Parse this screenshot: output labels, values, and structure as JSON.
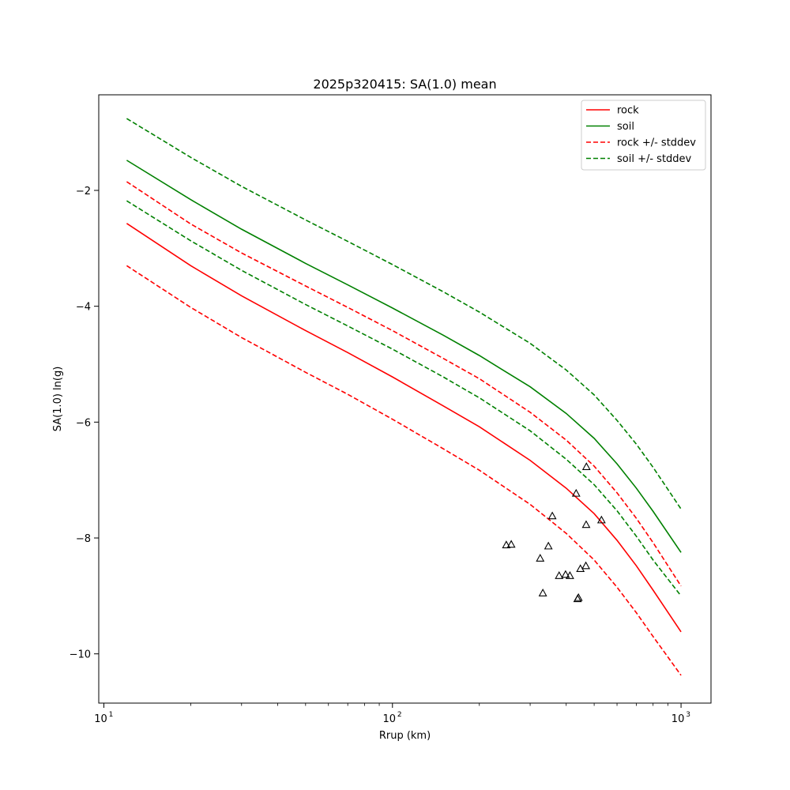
{
  "chart_data": {
    "type": "line",
    "title": "2025p320415: SA(1.0) mean",
    "xlabel": "Rrup (km)",
    "ylabel": "SA(1.0) ln(g)",
    "xscale": "log",
    "xlim": [
      9.6,
      1270
    ],
    "ylim": [
      -10.85,
      -0.35
    ],
    "xticks": [
      {
        "value": 10,
        "base": "10",
        "exp": "1"
      },
      {
        "value": 100,
        "base": "10",
        "exp": "2"
      },
      {
        "value": 1000,
        "base": "10",
        "exp": "3"
      }
    ],
    "yticks": [
      {
        "value": -2,
        "label": "−2"
      },
      {
        "value": -4,
        "label": "−4"
      },
      {
        "value": -6,
        "label": "−6"
      },
      {
        "value": -8,
        "label": "−8"
      },
      {
        "value": -10,
        "label": "−10"
      }
    ],
    "grid": false,
    "legend_position": "top-right",
    "x": [
      12,
      20,
      30,
      50,
      70,
      100,
      150,
      200,
      300,
      400,
      500,
      600,
      700,
      800,
      1000
    ],
    "series": [
      {
        "name": "rock",
        "color": "#ff0000",
        "dash": "solid",
        "values": [
          -2.57,
          -3.3,
          -3.82,
          -4.42,
          -4.8,
          -5.22,
          -5.72,
          -6.08,
          -6.66,
          -7.14,
          -7.58,
          -8.04,
          -8.48,
          -8.9,
          -9.62
        ]
      },
      {
        "name": "soil",
        "color": "#008000",
        "dash": "solid",
        "values": [
          -1.48,
          -2.16,
          -2.67,
          -3.26,
          -3.63,
          -4.03,
          -4.5,
          -4.85,
          -5.39,
          -5.85,
          -6.28,
          -6.72,
          -7.14,
          -7.54,
          -8.25
        ]
      },
      {
        "name": "rock +/- stddev",
        "color": "#ff0000",
        "dash": "dashed",
        "values": [
          -1.85,
          -2.58,
          -3.08,
          -3.65,
          -4.02,
          -4.42,
          -4.9,
          -5.25,
          -5.83,
          -6.31,
          -6.76,
          -7.22,
          -7.66,
          -8.08,
          -8.83
        ]
      },
      {
        "name": "",
        "color": "#ff0000",
        "dash": "dashed",
        "legend": false,
        "values": [
          -3.3,
          -4.02,
          -4.54,
          -5.14,
          -5.52,
          -5.95,
          -6.46,
          -6.83,
          -7.42,
          -7.92,
          -8.38,
          -8.85,
          -9.29,
          -9.7,
          -10.37
        ]
      },
      {
        "name": "soil +/- stddev",
        "color": "#008000",
        "dash": "dashed",
        "values": [
          -0.76,
          -1.43,
          -1.93,
          -2.51,
          -2.88,
          -3.28,
          -3.75,
          -4.1,
          -4.64,
          -5.1,
          -5.53,
          -5.97,
          -6.38,
          -6.78,
          -7.5
        ]
      },
      {
        "name": "",
        "color": "#008000",
        "dash": "dashed",
        "legend": false,
        "values": [
          -2.18,
          -2.87,
          -3.38,
          -3.97,
          -4.34,
          -4.74,
          -5.22,
          -5.58,
          -6.15,
          -6.64,
          -7.08,
          -7.53,
          -7.97,
          -8.38,
          -9.0
        ]
      }
    ],
    "observations": {
      "marker": "triangle-open",
      "color": "#000000",
      "points": [
        {
          "x": 248,
          "y": -8.12
        },
        {
          "x": 258,
          "y": -8.11
        },
        {
          "x": 325,
          "y": -8.35
        },
        {
          "x": 332,
          "y": -8.95
        },
        {
          "x": 347,
          "y": -8.14
        },
        {
          "x": 358,
          "y": -7.62
        },
        {
          "x": 378,
          "y": -8.65
        },
        {
          "x": 398,
          "y": -8.63
        },
        {
          "x": 412,
          "y": -8.65
        },
        {
          "x": 433,
          "y": -7.23
        },
        {
          "x": 438,
          "y": -9.05
        },
        {
          "x": 441,
          "y": -9.03
        },
        {
          "x": 448,
          "y": -8.53
        },
        {
          "x": 468,
          "y": -8.48
        },
        {
          "x": 469,
          "y": -7.77
        },
        {
          "x": 470,
          "y": -6.77
        },
        {
          "x": 530,
          "y": -7.69
        }
      ]
    }
  }
}
